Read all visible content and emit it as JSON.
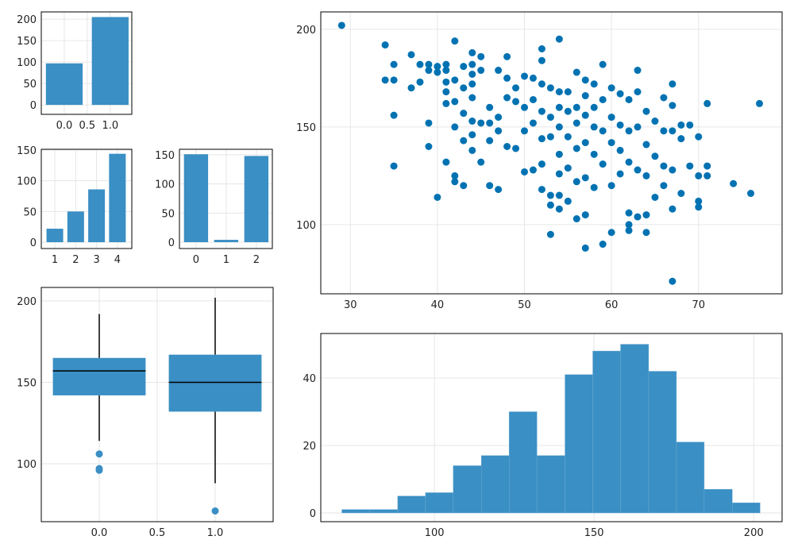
{
  "chart_data": [
    {
      "type": "bar",
      "x": [
        0,
        1
      ],
      "values": [
        97,
        205
      ],
      "color": "#3a8fc4",
      "bar_width": 0.8,
      "xlim": [
        -0.5,
        1.47
      ],
      "ylim": [
        -22,
        217
      ],
      "xticks": [
        {
          "value": 0,
          "label": "0.0"
        },
        {
          "value": 0.5,
          "label": "0.5"
        },
        {
          "value": 1,
          "label": "1.0"
        }
      ],
      "yticks": [
        0,
        50,
        100,
        150,
        200
      ],
      "grid": true
    },
    {
      "type": "bar",
      "x": [
        1,
        2,
        3,
        4
      ],
      "values": [
        22,
        50,
        86,
        144
      ],
      "color": "#3a8fc4",
      "bar_width": 0.8,
      "xlim": [
        0.35,
        4.69
      ],
      "ylim": [
        -10.3,
        151.3
      ],
      "xticks": [
        1,
        2,
        3,
        4
      ],
      "yticks": [
        0,
        50,
        100,
        150
      ],
      "grid": true
    },
    {
      "type": "bar",
      "x": [
        0,
        1,
        2
      ],
      "values": [
        151,
        4,
        148
      ],
      "color": "#3a8fc4",
      "bar_width": 0.8,
      "xlim": [
        -0.55,
        2.53
      ],
      "ylim": [
        -10.9,
        159.5
      ],
      "xticks": [
        0,
        1,
        2
      ],
      "yticks": [
        0,
        50,
        100,
        150
      ],
      "grid": true
    },
    {
      "type": "box",
      "x": [
        0,
        1
      ],
      "color": "#3a8fc4",
      "box_width": 0.8,
      "boxes": [
        {
          "min": 114,
          "q1": 142,
          "median": 157,
          "q3": 165,
          "max": 192,
          "outliers": [
            106,
            97,
            96
          ]
        },
        {
          "min": 88,
          "q1": 132,
          "median": 150,
          "q3": 167,
          "max": 202,
          "outliers": [
            71
          ]
        }
      ],
      "xlim": [
        -0.5,
        1.5
      ],
      "ylim": [
        64.4,
        208.3
      ],
      "xticks": [
        {
          "value": 0,
          "label": "0.0"
        },
        {
          "value": 0.5,
          "label": "0.5"
        },
        {
          "value": 1,
          "label": "1.0"
        }
      ],
      "yticks": [
        100,
        150,
        200
      ],
      "grid": true
    },
    {
      "type": "scatter",
      "color": "#0072b2",
      "x": [
        29,
        34,
        34,
        35,
        35,
        35,
        35,
        37,
        37,
        38,
        38,
        39,
        39,
        39,
        39,
        40,
        40,
        40,
        41,
        41,
        41,
        41,
        41,
        41,
        42,
        42,
        42,
        42,
        42,
        42,
        43,
        43,
        43,
        43,
        43,
        44,
        44,
        44,
        44,
        44,
        44,
        44,
        44,
        45,
        45,
        45,
        45,
        46,
        46,
        46,
        46,
        47,
        47,
        47,
        47,
        48,
        48,
        48,
        48,
        49,
        49,
        49,
        50,
        50,
        50,
        50,
        51,
        51,
        51,
        51,
        52,
        52,
        52,
        52,
        52,
        52,
        52,
        53,
        53,
        53,
        53,
        53,
        53,
        54,
        54,
        54,
        54,
        54,
        54,
        54,
        54,
        55,
        55,
        55,
        55,
        55,
        56,
        56,
        56,
        56,
        56,
        56,
        57,
        57,
        57,
        57,
        57,
        57,
        57,
        58,
        58,
        58,
        58,
        58,
        59,
        59,
        59,
        59,
        59,
        60,
        60,
        60,
        60,
        60,
        61,
        61,
        61,
        61,
        62,
        62,
        62,
        62,
        62,
        62,
        63,
        63,
        63,
        63,
        63,
        64,
        64,
        64,
        64,
        64,
        65,
        65,
        65,
        66,
        66,
        66,
        66,
        67,
        67,
        67,
        67,
        67,
        67,
        68,
        68,
        68,
        69,
        69,
        70,
        70,
        70,
        70,
        71,
        71,
        71,
        74,
        76,
        77
      ],
      "values": [
        202,
        192,
        174,
        182,
        174,
        156,
        130,
        187,
        170,
        182,
        173,
        182,
        179,
        152,
        140,
        181,
        178,
        114,
        182,
        179,
        173,
        168,
        162,
        132,
        194,
        174,
        163,
        150,
        125,
        122,
        181,
        170,
        157,
        143,
        120,
        188,
        182,
        177,
        172,
        165,
        153,
        146,
        138,
        186,
        179,
        152,
        132,
        160,
        152,
        143,
        120,
        179,
        155,
        148,
        118,
        186,
        175,
        165,
        140,
        170,
        163,
        139,
        176,
        160,
        148,
        127,
        175,
        164,
        152,
        128,
        190,
        184,
        172,
        158,
        144,
        131,
        118,
        170,
        155,
        145,
        115,
        110,
        95,
        195,
        168,
        160,
        150,
        136,
        126,
        115,
        108,
        168,
        158,
        145,
        129,
        112,
        178,
        160,
        152,
        139,
        122,
        103,
        174,
        166,
        156,
        142,
        124,
        105,
        88,
        172,
        160,
        150,
        136,
        119,
        182,
        164,
        148,
        131,
        90,
        170,
        155,
        142,
        120,
        96,
        167,
        151,
        138,
        126,
        164,
        148,
        132,
        106,
        100,
        97,
        179,
        168,
        150,
        128,
        104,
        158,
        141,
        125,
        105,
        96,
        153,
        135,
        114,
        165,
        148,
        130,
        120,
        172,
        161,
        148,
        128,
        108,
        71,
        151,
        144,
        116,
        151,
        130,
        145,
        125,
        112,
        109,
        162,
        130,
        125,
        121,
        116,
        162
      ],
      "xlim": [
        26.6,
        79.6
      ],
      "ylim": [
        64.6,
        208.9
      ],
      "xticks": [
        30,
        40,
        50,
        60,
        70
      ],
      "yticks": [
        100,
        150,
        200
      ],
      "grid": true
    },
    {
      "type": "histogram",
      "color": "#3a8fc4",
      "bins": [
        71,
        79.7,
        88.5,
        97.2,
        105.9,
        114.7,
        123.4,
        132.1,
        140.9,
        149.6,
        158.3,
        167.1,
        175.8,
        184.5,
        193.3,
        202
      ],
      "values": [
        1,
        1,
        5,
        6,
        14,
        17,
        30,
        17,
        41,
        48,
        50,
        42,
        21,
        7,
        3
      ],
      "xlim": [
        64.4,
        208.9
      ],
      "ylim": [
        -2.6,
        53.2
      ],
      "xticks": [
        100,
        150,
        200
      ],
      "yticks": [
        0,
        20,
        40
      ],
      "grid": true
    }
  ]
}
